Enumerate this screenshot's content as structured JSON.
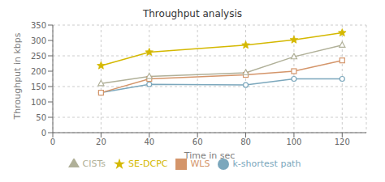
{
  "chart_data": {
    "type": "line",
    "title": "Throughput analysis",
    "xlabel": "Time in sec",
    "ylabel": "Throughput in kbps",
    "x": [
      20,
      40,
      80,
      100,
      120
    ],
    "series": [
      {
        "name": "k-shortest path",
        "color": "#7ba7bc",
        "marker": "circle",
        "values": [
          130,
          157,
          155,
          175,
          175
        ]
      },
      {
        "name": "WLS",
        "color": "#d4956a",
        "marker": "square",
        "values": [
          130,
          175,
          188,
          200,
          235
        ]
      },
      {
        "name": "CISTs",
        "color": "#b0b098",
        "marker": "triangle",
        "values": [
          160,
          183,
          195,
          247,
          285
        ]
      },
      {
        "name": "SE-DCPC",
        "color": "#d4b800",
        "marker": "star",
        "values": [
          218,
          262,
          285,
          302,
          325
        ]
      }
    ],
    "xlim": [
      0,
      130
    ],
    "ylim": [
      0,
      350
    ],
    "xticks": [
      0,
      20,
      40,
      60,
      80,
      100,
      120
    ],
    "yticks": [
      0,
      50,
      100,
      150,
      200,
      250,
      300,
      350
    ],
    "grid": true,
    "legend": "bottom"
  }
}
